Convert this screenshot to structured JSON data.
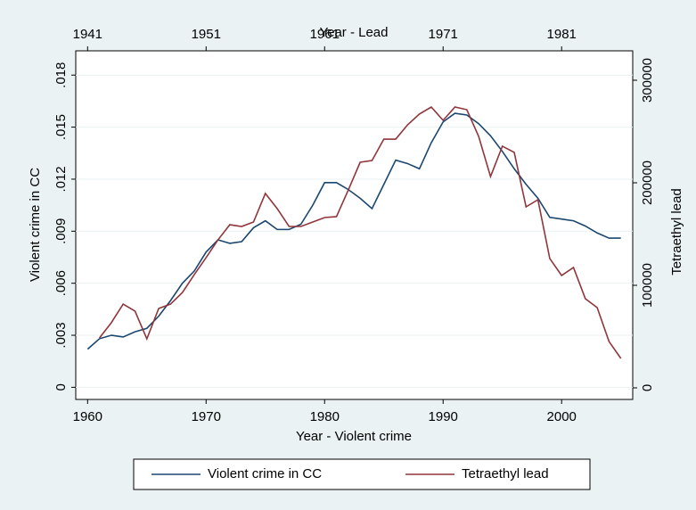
{
  "chart_data": {
    "type": "line",
    "xlabel": "Year - Violent crime",
    "x2label": "Year - Lead",
    "ylabel": "Violent crime in CC",
    "y2label": "Tetraethyl lead",
    "xlim": [
      1959,
      2006
    ],
    "xticks": [
      1960,
      1970,
      1980,
      1990,
      2000
    ],
    "x2lim": [
      1940,
      1987
    ],
    "x2ticks": [
      1941,
      1951,
      1961,
      1971,
      1981
    ],
    "ylim": [
      -0.0007,
      0.0194
    ],
    "yticks": [
      0,
      {
        "value": 0.003,
        "label": ".003"
      },
      {
        "value": 0.006,
        "label": ".006"
      },
      {
        "value": 0.009,
        "label": ".009"
      },
      {
        "value": 0.012,
        "label": ".012"
      },
      {
        "value": 0.015,
        "label": ".015"
      },
      {
        "value": 0.018,
        "label": ".018"
      }
    ],
    "y2lim": [
      -11300,
      328700
    ],
    "y2ticks": [
      0,
      100000,
      200000,
      300000
    ],
    "grid": true,
    "legend": "bottom",
    "series": [
      {
        "name": "Violent crime in CC",
        "color": "#1a476f",
        "xaxis": "x",
        "axis": "y",
        "x": [
          1960,
          1961,
          1962,
          1963,
          1964,
          1965,
          1966,
          1967,
          1968,
          1969,
          1970,
          1971,
          1972,
          1973,
          1974,
          1975,
          1976,
          1977,
          1978,
          1979,
          1980,
          1981,
          1982,
          1983,
          1984,
          1985,
          1986,
          1987,
          1988,
          1989,
          1990,
          1991,
          1992,
          1993,
          1994,
          1995,
          1996,
          1997,
          1998,
          1999,
          2000,
          2001,
          2002,
          2003,
          2004,
          2005
        ],
        "values": [
          0.0022,
          0.0028,
          0.003,
          0.0029,
          0.0032,
          0.0034,
          0.0041,
          0.005,
          0.006,
          0.0067,
          0.0078,
          0.0085,
          0.0083,
          0.0084,
          0.0092,
          0.0096,
          0.0091,
          0.0091,
          0.0094,
          0.0105,
          0.0118,
          0.0118,
          0.0114,
          0.0109,
          0.0103,
          0.0117,
          0.0131,
          0.0129,
          0.0126,
          0.0141,
          0.0153,
          0.0158,
          0.0157,
          0.0152,
          0.0145,
          0.0136,
          0.0126,
          0.0117,
          0.0109,
          0.0098,
          0.0097,
          0.0096,
          0.0093,
          0.0089,
          0.0086,
          0.0086
        ]
      },
      {
        "name": "Tetraethyl lead",
        "color": "#90353b",
        "xaxis": "x2",
        "axis": "y2",
        "x": [
          1942,
          1943,
          1944,
          1945,
          1946,
          1947,
          1948,
          1949,
          1950,
          1951,
          1952,
          1953,
          1954,
          1955,
          1956,
          1957,
          1958,
          1959,
          1960,
          1961,
          1962,
          1963,
          1964,
          1965,
          1966,
          1967,
          1968,
          1969,
          1970,
          1971,
          1972,
          1973,
          1974,
          1975,
          1976,
          1977,
          1978,
          1979,
          1980,
          1981,
          1982,
          1983,
          1984,
          1985,
          1986
        ],
        "values": [
          48700,
          63500,
          81700,
          74800,
          47800,
          77400,
          81700,
          93000,
          110400,
          127000,
          144300,
          159100,
          157400,
          161700,
          189600,
          174800,
          157400,
          157400,
          161700,
          166100,
          167000,
          193000,
          220000,
          221700,
          242600,
          242600,
          256500,
          267000,
          273900,
          260900,
          273900,
          271300,
          245200,
          206100,
          235700,
          229600,
          176500,
          183500,
          126100,
          109600,
          117400,
          87000,
          78300,
          45200,
          28700
        ]
      }
    ]
  }
}
